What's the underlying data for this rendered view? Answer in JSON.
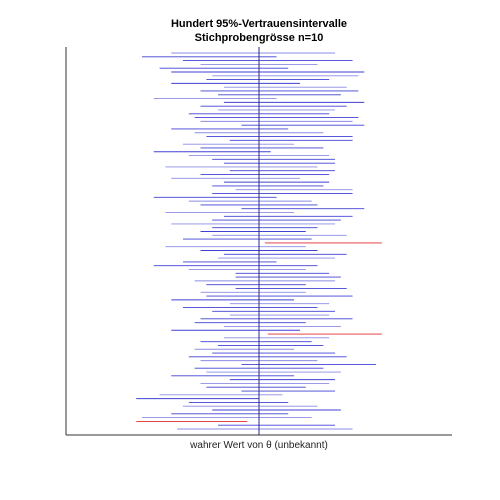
{
  "chart_data": {
    "type": "interval",
    "title": "Hundert 95%-Vertrauensintervalle",
    "subtitle": "Stichprobengrösse n=10",
    "xlabel": "wahrer Wert von θ (unbekannt)",
    "ylabel": "",
    "true_value": 0,
    "xlim": [
      -3.3,
      3.3
    ],
    "ylim": [
      0,
      101
    ],
    "colors": {
      "covers": "#2b2bd0",
      "misses": "#e02020",
      "true_line": "#2a2a8c",
      "axis": "#333333"
    },
    "intervals": [
      [
        -1.5,
        1.3
      ],
      [
        -2.0,
        0.3
      ],
      [
        -1.3,
        1.6
      ],
      [
        -1.0,
        1.0
      ],
      [
        -1.7,
        0.5
      ],
      [
        -1.5,
        1.8
      ],
      [
        -0.8,
        1.7
      ],
      [
        -0.9,
        1.2
      ],
      [
        -1.5,
        0.7
      ],
      [
        -0.6,
        1.5
      ],
      [
        -1.0,
        1.7
      ],
      [
        -0.7,
        1.4
      ],
      [
        -1.8,
        0.3
      ],
      [
        -0.6,
        1.8
      ],
      [
        -1.0,
        1.5
      ],
      [
        -0.7,
        1.3
      ],
      [
        -1.2,
        1.2
      ],
      [
        -1.1,
        1.7
      ],
      [
        -1.0,
        1.6
      ],
      [
        -0.3,
        1.8
      ],
      [
        -1.5,
        0.5
      ],
      [
        -1.1,
        1.1
      ],
      [
        -0.9,
        1.6
      ],
      [
        -0.5,
        1.6
      ],
      [
        -1.3,
        0.6
      ],
      [
        -1.0,
        1.1
      ],
      [
        -1.8,
        0.2
      ],
      [
        -1.2,
        1.2
      ],
      [
        -0.8,
        1.3
      ],
      [
        -0.6,
        1.3
      ],
      [
        -1.6,
        1.0
      ],
      [
        -0.5,
        1.3
      ],
      [
        -1.0,
        1.2
      ],
      [
        -1.5,
        0.7
      ],
      [
        -0.6,
        1.2
      ],
      [
        -0.8,
        1.1
      ],
      [
        -0.4,
        1.6
      ],
      [
        -0.8,
        1.6
      ],
      [
        -1.8,
        0.3
      ],
      [
        -1.2,
        0.9
      ],
      [
        -1.0,
        1.0
      ],
      [
        -0.3,
        1.8
      ],
      [
        -1.6,
        0.6
      ],
      [
        -0.6,
        1.6
      ],
      [
        -0.8,
        1.4
      ],
      [
        -1.5,
        1.3
      ],
      [
        -0.8,
        1.0
      ],
      [
        -1.0,
        0.8
      ],
      [
        -0.8,
        1.5
      ],
      [
        -1.3,
        0.9
      ],
      [
        0.1,
        2.1
      ],
      [
        -1.6,
        0.8
      ],
      [
        -1.0,
        1.0
      ],
      [
        -0.6,
        1.5
      ],
      [
        -0.7,
        1.3
      ],
      [
        -1.3,
        0.3
      ],
      [
        -1.8,
        1.0
      ],
      [
        -1.2,
        0.8
      ],
      [
        -0.4,
        1.2
      ],
      [
        -0.4,
        1.4
      ],
      [
        -1.1,
        1.3
      ],
      [
        -0.9,
        0.8
      ],
      [
        -0.4,
        1.5
      ],
      [
        -1.0,
        0.8
      ],
      [
        -0.9,
        1.6
      ],
      [
        -1.5,
        0.6
      ],
      [
        -0.5,
        1.2
      ],
      [
        -1.3,
        1.0
      ],
      [
        -0.8,
        1.3
      ],
      [
        -0.5,
        1.2
      ],
      [
        -1.0,
        1.6
      ],
      [
        -1.1,
        0.8
      ],
      [
        -0.6,
        1.4
      ],
      [
        -1.5,
        0.7
      ],
      [
        0.15,
        2.1
      ],
      [
        -0.6,
        1.2
      ],
      [
        -1.0,
        0.9
      ],
      [
        -0.7,
        1.1
      ],
      [
        -1.1,
        0.6
      ],
      [
        -0.8,
        1.3
      ],
      [
        -1.2,
        1.5
      ],
      [
        -1.0,
        1.0
      ],
      [
        -0.3,
        2.0
      ],
      [
        -1.1,
        1.1
      ],
      [
        -0.9,
        1.4
      ],
      [
        -1.5,
        0.6
      ],
      [
        -0.5,
        1.3
      ],
      [
        -1.0,
        1.2
      ],
      [
        -0.9,
        0.8
      ],
      [
        -0.3,
        1.3
      ],
      [
        -1.7,
        0.4
      ],
      [
        -2.1,
        0.0
      ],
      [
        -1.2,
        0.5
      ],
      [
        -1.3,
        1.0
      ],
      [
        -0.8,
        1.4
      ],
      [
        -1.5,
        0.5
      ],
      [
        -2.0,
        0.9
      ],
      [
        -2.1,
        -0.2
      ],
      [
        -0.7,
        1.3
      ],
      [
        -1.4,
        1.6
      ]
    ]
  }
}
